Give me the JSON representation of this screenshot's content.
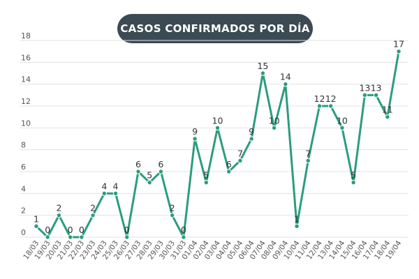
{
  "chart_data": {
    "type": "line",
    "title": "CASOS CONFIRMADOS POR DÍA",
    "xlabel": "",
    "ylabel": "",
    "ylim": [
      0,
      18
    ],
    "yticks": [
      0,
      2,
      4,
      6,
      8,
      10,
      12,
      14,
      16,
      18
    ],
    "grid": true,
    "line_color": "#2a9d7f",
    "categories": [
      "18/03",
      "19/03",
      "20/03",
      "21/03",
      "22/03",
      "23/03",
      "24/03",
      "25/03",
      "26/03",
      "27/03",
      "28/03",
      "29/03",
      "30/03",
      "31/03",
      "01/04",
      "02/04",
      "03/04",
      "04/04",
      "05/04",
      "06/04",
      "07/04",
      "08/04",
      "09/04",
      "10/04",
      "11/04",
      "12/04",
      "13/04",
      "14/04",
      "15/04",
      "16/04",
      "17/04",
      "18/04",
      "19/04"
    ],
    "series": [
      {
        "values": [
          1,
          0,
          2,
          0,
          0,
          2,
          4,
          4,
          0,
          6,
          5,
          6,
          2,
          0,
          9,
          5,
          10,
          6,
          7,
          9,
          15,
          10,
          14,
          1,
          7,
          12,
          12,
          10,
          5,
          13,
          13,
          11,
          17
        ]
      }
    ]
  }
}
